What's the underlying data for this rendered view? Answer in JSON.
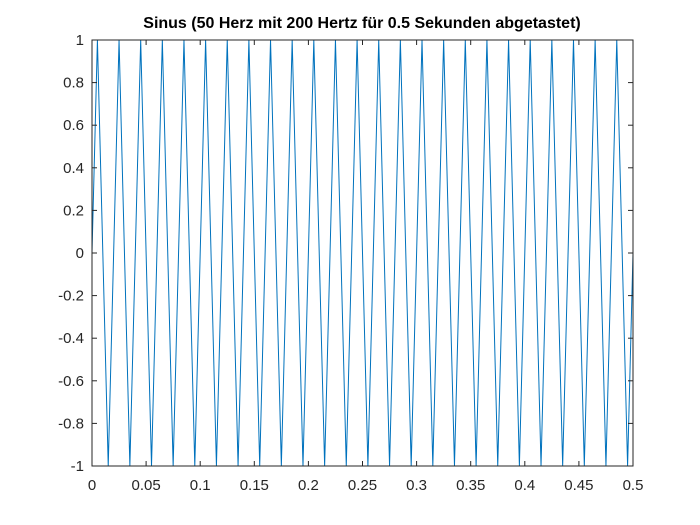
{
  "chart_data": {
    "type": "line",
    "title": "Sinus (50 Herz mit 200 Hertz für 0.5 Sekunden abgetastet)",
    "xlabel": "",
    "ylabel": "",
    "xlim": [
      0,
      0.5
    ],
    "ylim": [
      -1,
      1
    ],
    "grid": false,
    "line_color": "#0072BD",
    "axis_color": "#262626",
    "x_ticks": [
      0,
      0.05,
      0.1,
      0.15,
      0.2,
      0.25,
      0.3,
      0.35,
      0.4,
      0.45,
      0.5
    ],
    "x_tick_labels": [
      "0",
      "0.05",
      "0.1",
      "0.15",
      "0.2",
      "0.25",
      "0.3",
      "0.35",
      "0.4",
      "0.45",
      "0.5"
    ],
    "y_ticks": [
      -1,
      -0.8,
      -0.6,
      -0.4,
      -0.2,
      0,
      0.2,
      0.4,
      0.6,
      0.8,
      1
    ],
    "y_tick_labels": [
      "-1",
      "-0.8",
      "-0.6",
      "-0.4",
      "-0.2",
      "0",
      "0.2",
      "0.4",
      "0.6",
      "0.8",
      "1"
    ],
    "series": [
      {
        "x": [
          0,
          0.005,
          0.015,
          0.025,
          0.035,
          0.045,
          0.055,
          0.065,
          0.075,
          0.085,
          0.095,
          0.105,
          0.115,
          0.125,
          0.135,
          0.145,
          0.155,
          0.165,
          0.175,
          0.185,
          0.195,
          0.205,
          0.215,
          0.225,
          0.235,
          0.245,
          0.255,
          0.265,
          0.275,
          0.285,
          0.295,
          0.305,
          0.315,
          0.325,
          0.335,
          0.345,
          0.355,
          0.365,
          0.375,
          0.385,
          0.395,
          0.405,
          0.415,
          0.425,
          0.435,
          0.445,
          0.455,
          0.465,
          0.475,
          0.485,
          0.495,
          0.5
        ],
        "y": [
          0,
          1,
          -1,
          1,
          -1,
          1,
          -1,
          1,
          -1,
          1,
          -1,
          1,
          -1,
          1,
          -1,
          1,
          -1,
          1,
          -1,
          1,
          -1,
          1,
          -1,
          1,
          -1,
          1,
          -1,
          1,
          -1,
          1,
          -1,
          1,
          -1,
          1,
          -1,
          1,
          -1,
          1,
          -1,
          1,
          -1,
          1,
          -1,
          1,
          -1,
          1,
          -1,
          1,
          -1,
          1,
          -1,
          0
        ]
      }
    ]
  }
}
